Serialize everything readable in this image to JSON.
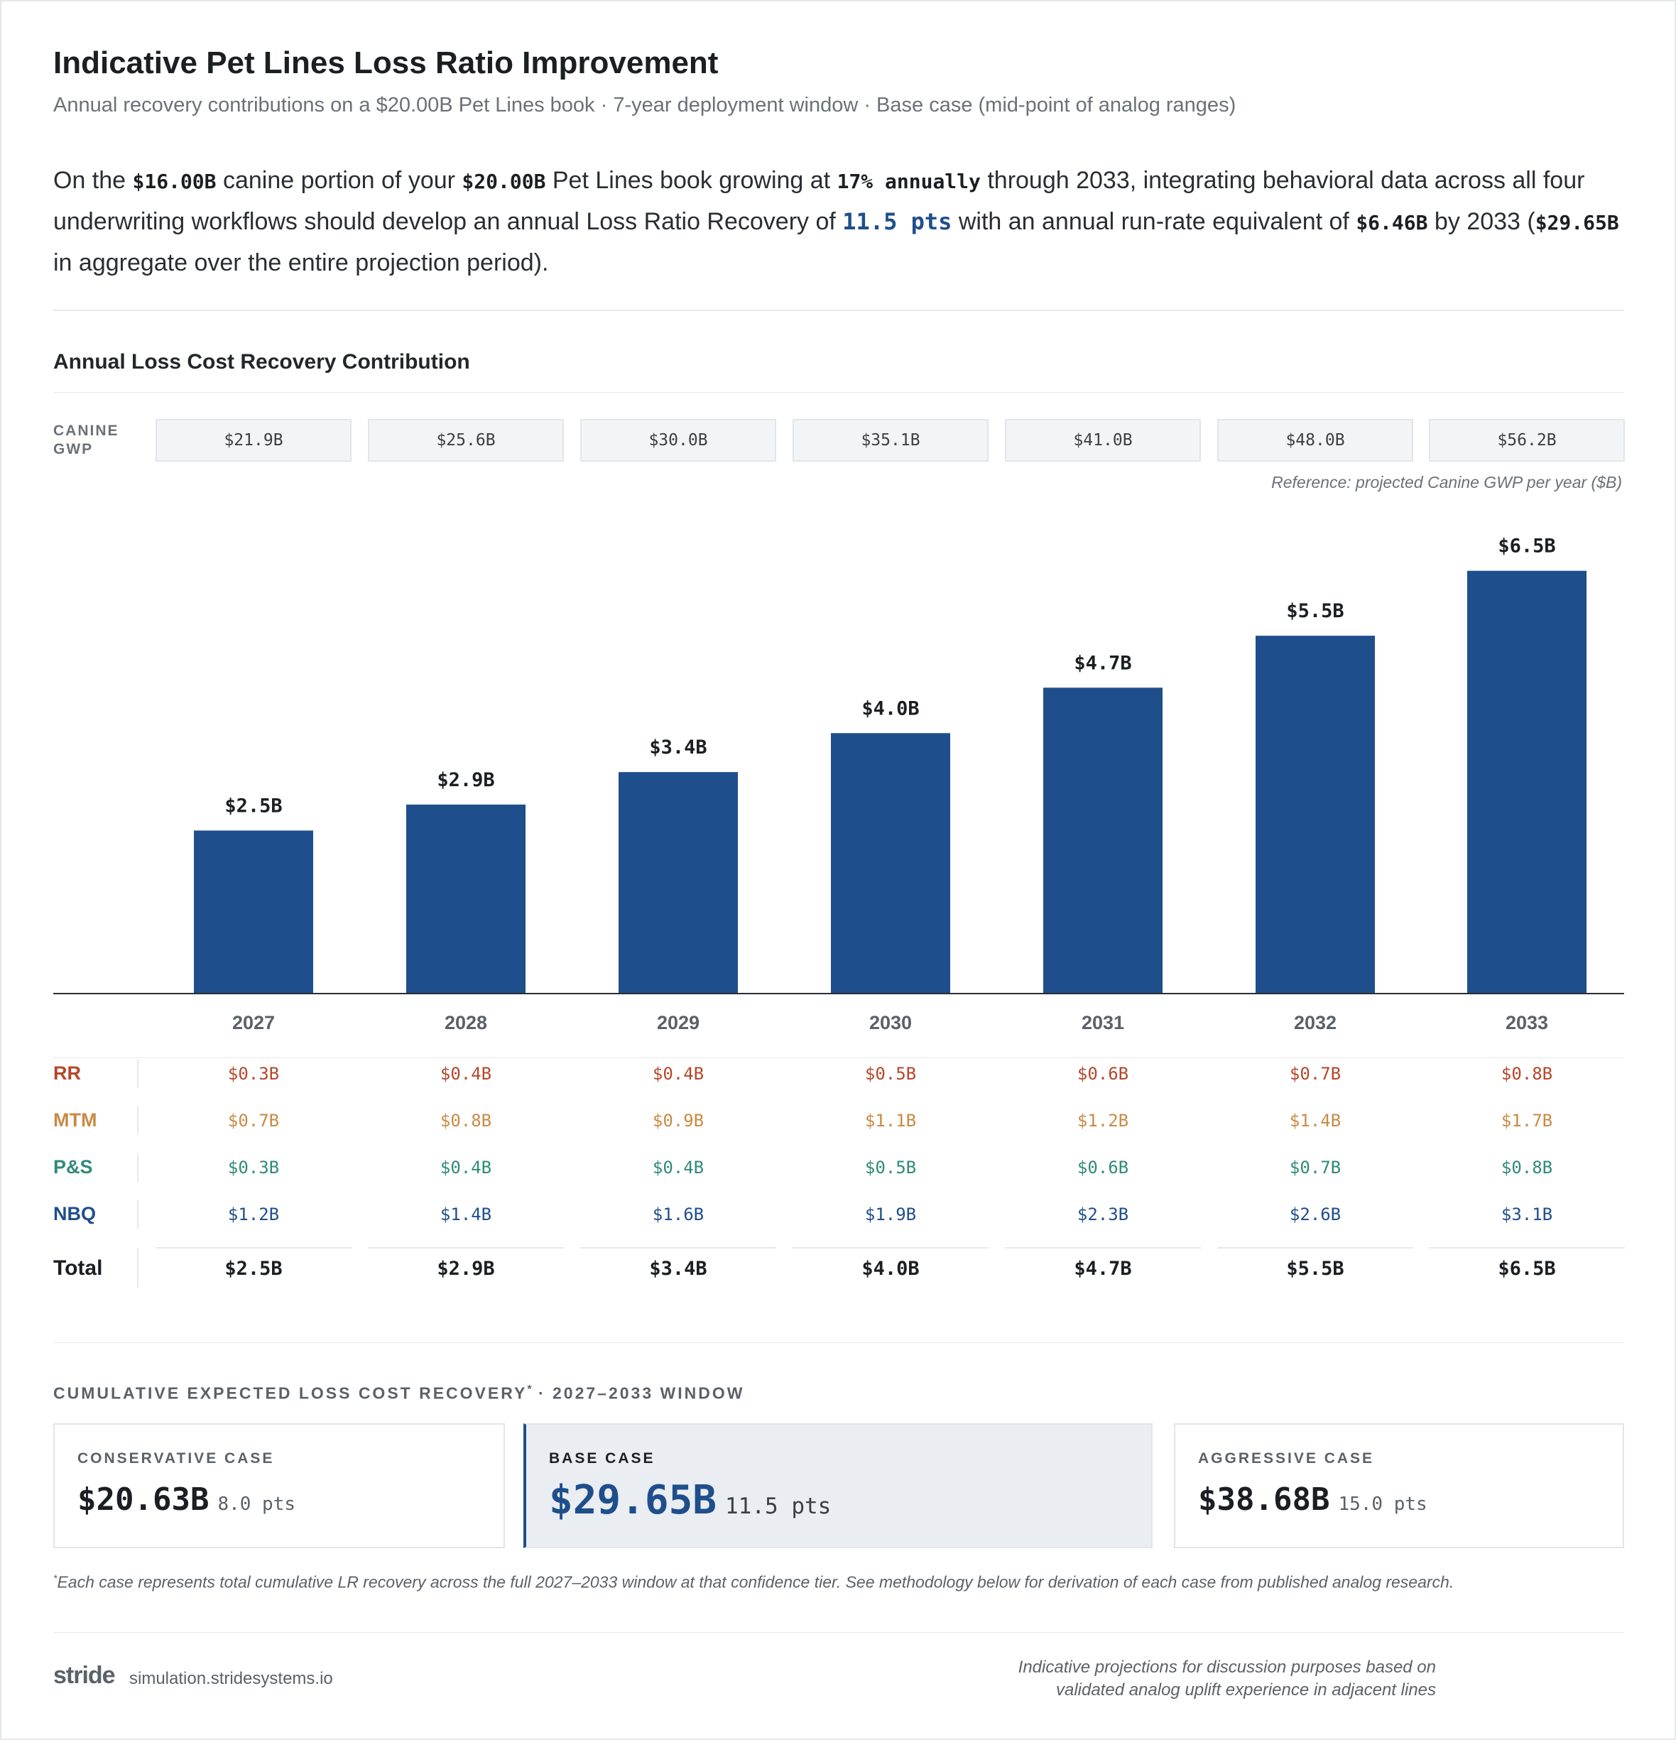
{
  "header": {
    "title": "Indicative Pet Lines Loss Ratio Improvement",
    "subtitle": "Annual recovery contributions on a $20.00B Pet Lines book · 7-year deployment window · Base case (mid-point of analog ranges)"
  },
  "summary": {
    "t1": "On the ",
    "canine": "$16.00B",
    "t2": " canine portion of your ",
    "book": "$20.00B",
    "t3": " Pet Lines book growing at ",
    "growth": "17% annually",
    "t4": " through 2033, integrating behavioral data across all four underwriting workflows should develop an annual Loss Ratio Recovery of ",
    "recovery": "11.5 pts",
    "t5": " with an annual run-rate equivalent of ",
    "runrate": "$6.46B",
    "t6": " by 2033 (",
    "aggregate": "$29.65B",
    "t7": " in aggregate over the entire projection period)."
  },
  "section_title": "Annual Loss Cost Recovery Contribution",
  "gwp": {
    "label_line1": "CANINE",
    "label_line2": "GWP",
    "values": [
      "$21.9B",
      "$25.6B",
      "$30.0B",
      "$35.1B",
      "$41.0B",
      "$48.0B",
      "$56.2B"
    ],
    "reference": "Reference: projected Canine GWP per year ($B)"
  },
  "colors": {
    "bar": "#1f4e8c",
    "RR": "#b5472a",
    "MTM": "#c98a45",
    "PS": "#2f8a7a",
    "NBQ": "#1f4e8c"
  },
  "chart_data": {
    "type": "bar",
    "categories": [
      "2027",
      "2028",
      "2029",
      "2030",
      "2031",
      "2032",
      "2033"
    ],
    "values": [
      2.5,
      2.9,
      3.4,
      4.0,
      4.7,
      5.5,
      6.5
    ],
    "data_labels": [
      "$2.5B",
      "$2.9B",
      "$3.4B",
      "$4.0B",
      "$4.7B",
      "$5.5B",
      "$6.5B"
    ],
    "title": "Annual Loss Cost Recovery Contribution",
    "ylim": [
      0,
      7.0
    ],
    "grid": false
  },
  "breakdown": {
    "rows": [
      {
        "label": "RR",
        "color_key": "RR",
        "values": [
          "$0.3B",
          "$0.4B",
          "$0.4B",
          "$0.5B",
          "$0.6B",
          "$0.7B",
          "$0.8B"
        ]
      },
      {
        "label": "MTM",
        "color_key": "MTM",
        "values": [
          "$0.7B",
          "$0.8B",
          "$0.9B",
          "$1.1B",
          "$1.2B",
          "$1.4B",
          "$1.7B"
        ]
      },
      {
        "label": "P&S",
        "color_key": "PS",
        "values": [
          "$0.3B",
          "$0.4B",
          "$0.4B",
          "$0.5B",
          "$0.6B",
          "$0.7B",
          "$0.8B"
        ]
      },
      {
        "label": "NBQ",
        "color_key": "NBQ",
        "values": [
          "$1.2B",
          "$1.4B",
          "$1.6B",
          "$1.9B",
          "$2.3B",
          "$2.6B",
          "$3.1B"
        ]
      }
    ],
    "total_label": "Total",
    "totals": [
      "$2.5B",
      "$2.9B",
      "$3.4B",
      "$4.0B",
      "$4.7B",
      "$5.5B",
      "$6.5B"
    ]
  },
  "cumulative": {
    "title": "CUMULATIVE EXPECTED LOSS COST RECOVERY",
    "marker": "*",
    "window": " · 2027–2033 WINDOW",
    "cases": [
      {
        "label": "CONSERVATIVE CASE",
        "value": "$20.63B",
        "pts": "8.0 pts"
      },
      {
        "label": "BASE CASE",
        "value": "$29.65B",
        "pts": "11.5 pts"
      },
      {
        "label": "AGGRESSIVE CASE",
        "value": "$38.68B",
        "pts": "15.0 pts"
      }
    ],
    "footnote_marker": "*",
    "footnote": "Each case represents total cumulative LR recovery across the full 2027–2033 window at that confidence tier. See methodology below for derivation of each case from published analog research."
  },
  "footer": {
    "logo": "stride",
    "url": "simulation.stridesystems.io",
    "disclaimer_line1": "Indicative projections for discussion purposes based on",
    "disclaimer_line2": "validated analog uplift experience in adjacent lines"
  }
}
